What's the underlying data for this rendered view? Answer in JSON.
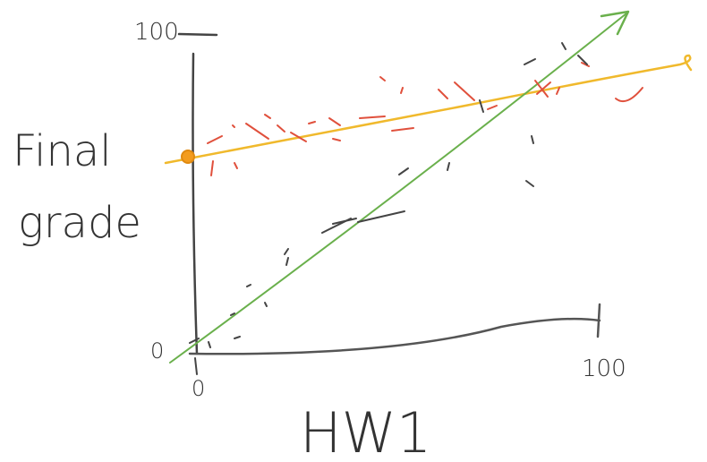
{
  "axes": {
    "y_top": "100",
    "y_bottom": "0",
    "x_left": "0",
    "x_right": "100",
    "y_label": [
      "Final",
      "grade"
    ],
    "x_label": "HW1"
  }
}
